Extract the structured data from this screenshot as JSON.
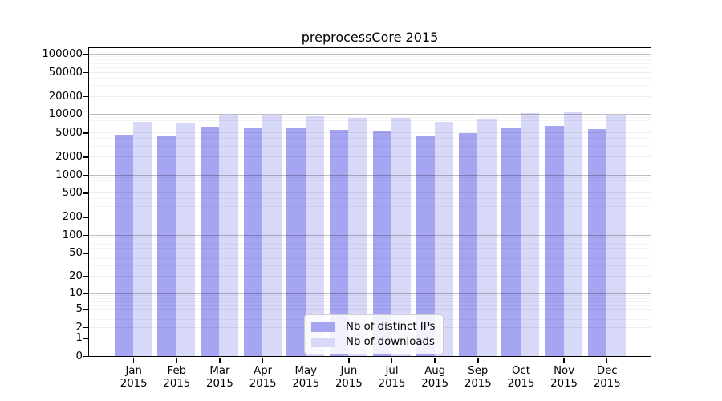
{
  "title": "preprocessCore 2015",
  "legend": {
    "items": [
      {
        "label": "Nb of distinct IPs",
        "color": "#a5a5f2"
      },
      {
        "label": "Nb of downloads",
        "color": "#d8d8f8"
      }
    ]
  },
  "y_axis": {
    "ticks": [
      0,
      1,
      2,
      5,
      10,
      20,
      50,
      100,
      200,
      500,
      1000,
      2000,
      5000,
      10000,
      20000,
      50000,
      100000
    ]
  },
  "x_axis": {
    "months": [
      "Jan",
      "Feb",
      "Mar",
      "Apr",
      "May",
      "Jun",
      "Jul",
      "Aug",
      "Sep",
      "Oct",
      "Nov",
      "Dec"
    ],
    "year": "2015"
  },
  "chart_data": {
    "type": "bar",
    "title": "preprocessCore 2015",
    "categories": [
      "Jan 2015",
      "Feb 2015",
      "Mar 2015",
      "Apr 2015",
      "May 2015",
      "Jun 2015",
      "Jul 2015",
      "Aug 2015",
      "Sep 2015",
      "Oct 2015",
      "Nov 2015",
      "Dec 2015"
    ],
    "series": [
      {
        "name": "Nb of distinct IPs",
        "color": "#a5a5f2",
        "values": [
          4650,
          4500,
          6300,
          6000,
          5900,
          5500,
          5300,
          4500,
          4950,
          6100,
          6400,
          5700
        ]
      },
      {
        "name": "Nb of downloads",
        "color": "#d8d8f8",
        "values": [
          7500,
          7200,
          9900,
          9600,
          9400,
          8900,
          8900,
          7500,
          8300,
          10700,
          10800,
          9500
        ]
      }
    ],
    "yscale": "log1p",
    "ylim": [
      0,
      126000
    ],
    "y_ticks": [
      0,
      1,
      2,
      5,
      10,
      20,
      50,
      100,
      200,
      500,
      1000,
      2000,
      5000,
      10000,
      20000,
      50000,
      100000
    ],
    "grid": true,
    "legend_position": "lower center"
  }
}
